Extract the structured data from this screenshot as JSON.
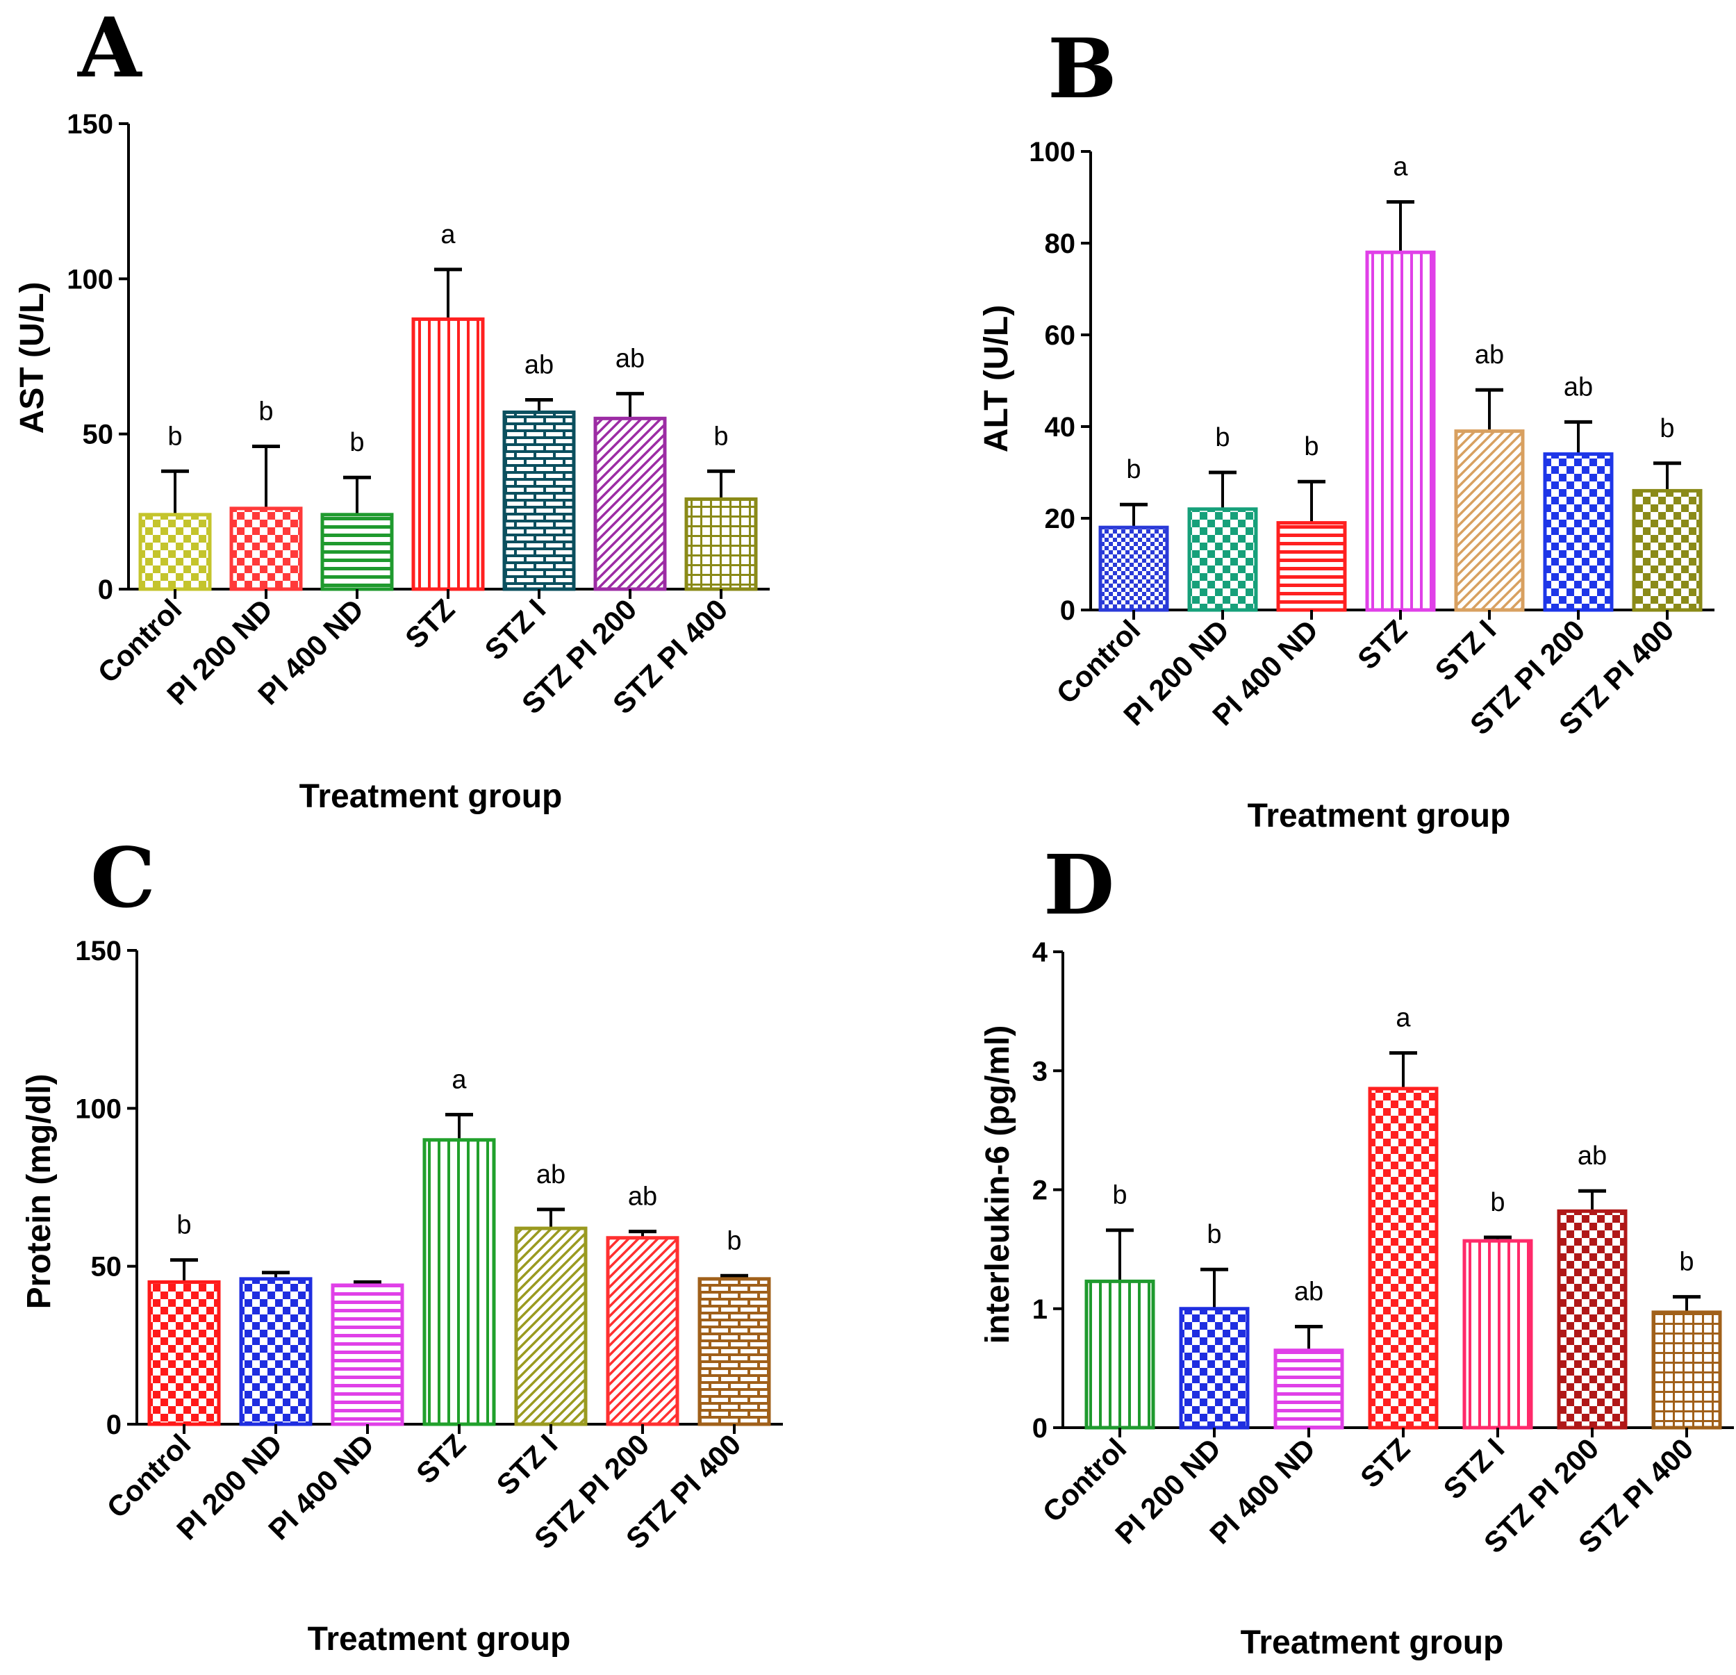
{
  "chart_data": [
    {
      "panel": "A",
      "type": "bar",
      "xlabel": "Treatment group",
      "ylabel": "AST (U/L)",
      "ylim": [
        0,
        150
      ],
      "yticks": [
        0,
        50,
        100,
        150
      ],
      "categories": [
        "Control",
        "PI 200 ND",
        "PI 400 ND",
        "STZ",
        "STZ I",
        "STZ PI 200",
        "STZ PI 400"
      ],
      "values": [
        24,
        26,
        24,
        87,
        57,
        55,
        29
      ],
      "errors": [
        14,
        20,
        12,
        16,
        4,
        8,
        9
      ],
      "labels": [
        "b",
        "b",
        "b",
        "a",
        "ab",
        "ab",
        "b"
      ],
      "colors": [
        "#c4c42c",
        "#ff3a3a",
        "#1f9a2e",
        "#ff2020",
        "#0b4f5e",
        "#9c2ca4",
        "#8a8a18"
      ],
      "patterns": [
        "checker",
        "checker",
        "hstripes",
        "vstripes",
        "brick",
        "diag",
        "grid"
      ]
    },
    {
      "panel": "B",
      "type": "bar",
      "xlabel": "Treatment group",
      "ylabel": "ALT (U/L)",
      "ylim": [
        0,
        100
      ],
      "yticks": [
        0,
        20,
        40,
        60,
        80,
        100
      ],
      "categories": [
        "Control",
        "PI 200 ND",
        "PI 400 ND",
        "STZ",
        "STZ I",
        "STZ PI 200",
        "STZ PI 400"
      ],
      "values": [
        18,
        22,
        19,
        78,
        39,
        34,
        26
      ],
      "errors": [
        5,
        8,
        9,
        11,
        9,
        7,
        6
      ],
      "labels": [
        "b",
        "b",
        "b",
        "a",
        "ab",
        "ab",
        "b"
      ],
      "colors": [
        "#2a3ad8",
        "#16a07a",
        "#ff2020",
        "#e040e8",
        "#d8a060",
        "#1e36e8",
        "#8a8a18"
      ],
      "patterns": [
        "finechecker",
        "checker",
        "hstripes",
        "vstripes",
        "diag",
        "checker",
        "checker"
      ]
    },
    {
      "panel": "C",
      "type": "bar",
      "xlabel": "Treatment group",
      "ylabel": "Protein (mg/dl)",
      "ylim": [
        0,
        150
      ],
      "yticks": [
        0,
        50,
        100,
        150
      ],
      "categories": [
        "Control",
        "PI 200 ND",
        "PI 400 ND",
        "STZ",
        "STZ I",
        "STZ PI 200",
        "STZ PI 400"
      ],
      "values": [
        45,
        46,
        44,
        90,
        62,
        59,
        46
      ],
      "errors": [
        7,
        2,
        1,
        8,
        6,
        2,
        1
      ],
      "labels": [
        "b",
        "",
        "",
        "a",
        "ab",
        "ab",
        "b"
      ],
      "colors": [
        "#ff1a1a",
        "#1f2ee0",
        "#e040e8",
        "#21a02c",
        "#9a9a20",
        "#ff3030",
        "#a0601a"
      ],
      "patterns": [
        "checker",
        "checker",
        "hstripes",
        "vstripes",
        "diag",
        "diag",
        "brick"
      ]
    },
    {
      "panel": "D",
      "type": "bar",
      "xlabel": "Treatment group",
      "ylabel": "interleukin-6 (pg/ml)",
      "ylim": [
        0,
        4
      ],
      "yticks": [
        0,
        1,
        2,
        3,
        4
      ],
      "categories": [
        "Control",
        "PI 200 ND",
        "PI 400 ND",
        "STZ",
        "STZ I",
        "STZ PI 200",
        "STZ PI 400"
      ],
      "values": [
        1.23,
        1.0,
        0.65,
        2.85,
        1.57,
        1.82,
        0.97
      ],
      "errors": [
        0.43,
        0.33,
        0.2,
        0.3,
        0.03,
        0.17,
        0.13
      ],
      "labels": [
        "b",
        "b",
        "ab",
        "a",
        "b",
        "ab",
        "b"
      ],
      "colors": [
        "#1f9a2e",
        "#1f2ee0",
        "#e040e8",
        "#ff2020",
        "#ff2a6a",
        "#b01818",
        "#a0601a"
      ],
      "patterns": [
        "vstripes",
        "checker",
        "hstripes",
        "checker",
        "vstripes",
        "checker",
        "grid"
      ]
    }
  ]
}
